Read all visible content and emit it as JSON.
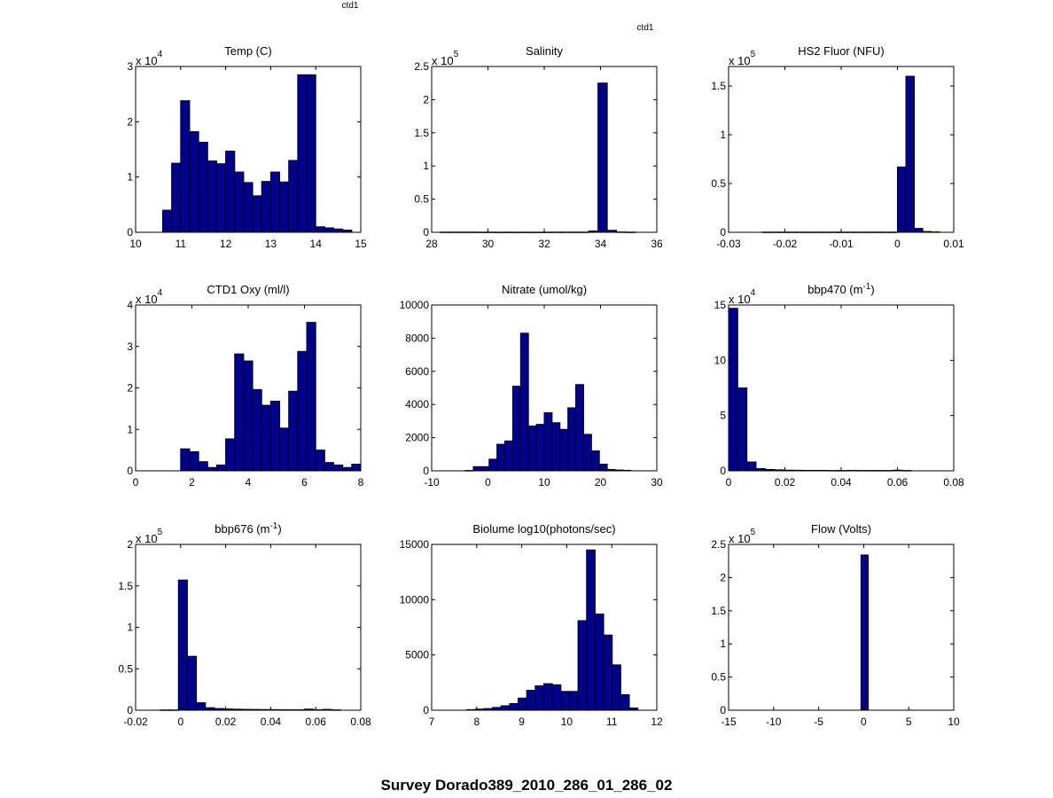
{
  "figure": {
    "suptitle": "Survey Dorado389_2010_286_01_286_02",
    "tags": [
      "ctd1",
      "ctd1"
    ],
    "bar_color": "#00008f"
  },
  "chart_data": [
    {
      "type": "bar",
      "title": "Temp (C)",
      "xlim": [
        10,
        15
      ],
      "ylim": [
        0,
        30000
      ],
      "xticks": [
        10,
        11,
        12,
        13,
        14,
        15
      ],
      "xtick_labels": [
        "10",
        "11",
        "12",
        "13",
        "14",
        "15"
      ],
      "yticks": [
        0,
        10000,
        20000,
        30000
      ],
      "ytick_labels": [
        "0",
        "1",
        "2",
        "3"
      ],
      "exponent": "4",
      "bins": {
        "start": 10.6,
        "width": 0.2
      },
      "values": [
        4000,
        12500,
        23800,
        18200,
        16300,
        12900,
        12400,
        14700,
        10900,
        9000,
        6600,
        9200,
        10900,
        9100,
        13000,
        28500,
        28500,
        1000,
        800,
        600,
        400
      ]
    },
    {
      "type": "bar",
      "title": "Salinity",
      "xlim": [
        28,
        36
      ],
      "ylim": [
        0,
        250000
      ],
      "xticks": [
        28,
        30,
        32,
        34,
        36
      ],
      "xtick_labels": [
        "28",
        "30",
        "32",
        "34",
        "36"
      ],
      "yticks": [
        0,
        50000,
        100000,
        150000,
        200000,
        250000
      ],
      "ytick_labels": [
        "0",
        "0.5",
        "1",
        "1.5",
        "2",
        "2.5"
      ],
      "exponent": "5",
      "bins": {
        "start": 28.3,
        "width": 0.33
      },
      "values": [
        300,
        300,
        300,
        300,
        200,
        300,
        200,
        200,
        200,
        200,
        200,
        200,
        300,
        300,
        300,
        300,
        2000,
        225000,
        3000,
        500,
        300
      ]
    },
    {
      "type": "bar",
      "title": "HS2 Fluor (NFU)",
      "xlim": [
        -0.03,
        0.01
      ],
      "ylim": [
        0,
        170000
      ],
      "xticks": [
        -0.03,
        -0.02,
        -0.01,
        0,
        0.01
      ],
      "xtick_labels": [
        "-0.03",
        "-0.02",
        "-0.01",
        "0",
        "0.01"
      ],
      "yticks": [
        0,
        50000,
        100000,
        150000
      ],
      "ytick_labels": [
        "0",
        "0.5",
        "1",
        "1.5"
      ],
      "exponent": "5",
      "bins": {
        "start": -0.024,
        "width": 0.0015
      },
      "values": [
        200,
        200,
        200,
        200,
        200,
        200,
        200,
        200,
        200,
        200,
        200,
        200,
        200,
        200,
        200,
        200,
        67000,
        160000,
        4000,
        800,
        400
      ]
    },
    {
      "type": "bar",
      "title": "CTD1 Oxy (ml/l)",
      "xlim": [
        0,
        8
      ],
      "ylim": [
        0,
        40000
      ],
      "xticks": [
        0,
        2,
        4,
        6,
        8
      ],
      "xtick_labels": [
        "0",
        "2",
        "4",
        "6",
        "8"
      ],
      "yticks": [
        0,
        10000,
        20000,
        30000,
        40000
      ],
      "ytick_labels": [
        "0",
        "1",
        "2",
        "3",
        "4"
      ],
      "exponent": "4",
      "bins": {
        "start": 1.6,
        "width": 0.32
      },
      "values": [
        5300,
        4600,
        2200,
        800,
        1400,
        7700,
        28200,
        26500,
        19600,
        15800,
        16800,
        10300,
        19200,
        28800,
        35800,
        5000,
        2000,
        1400,
        800,
        1600
      ]
    },
    {
      "type": "bar",
      "title": "Nitrate (umol/kg)",
      "xlim": [
        -10,
        30
      ],
      "ylim": [
        0,
        10000
      ],
      "xticks": [
        -10,
        0,
        10,
        20,
        30
      ],
      "xtick_labels": [
        "-10",
        "0",
        "10",
        "20",
        "30"
      ],
      "yticks": [
        0,
        2000,
        4000,
        6000,
        8000,
        10000
      ],
      "ytick_labels": [
        "0",
        "2000",
        "4000",
        "6000",
        "8000",
        "10000"
      ],
      "exponent": "",
      "bins": {
        "start": -4.0,
        "width": 1.4
      },
      "values": [
        20,
        250,
        250,
        700,
        1600,
        1800,
        5100,
        8300,
        2700,
        2800,
        3500,
        2900,
        2500,
        3800,
        5200,
        2200,
        1200,
        400,
        80,
        50,
        30
      ]
    },
    {
      "type": "bar",
      "title": "bbp470 (m⁻¹)",
      "title_main": "bbp470 (m",
      "title_sup": "-1",
      "title_end": ")",
      "xlim": [
        0,
        0.08
      ],
      "ylim": [
        0,
        150000
      ],
      "xticks": [
        0,
        0.02,
        0.04,
        0.06,
        0.08
      ],
      "xtick_labels": [
        "0",
        "0.02",
        "0.04",
        "0.06",
        "0.08"
      ],
      "yticks": [
        0,
        50000,
        100000,
        150000
      ],
      "ytick_labels": [
        "0",
        "5",
        "10",
        "15"
      ],
      "exponent": "4",
      "bins": {
        "start": 0.0,
        "width": 0.00325
      },
      "values": [
        147000,
        75000,
        8000,
        2000,
        1200,
        900,
        600,
        500,
        400,
        400,
        400,
        300,
        300,
        400,
        300,
        300,
        300,
        300,
        600,
        300
      ]
    },
    {
      "type": "bar",
      "title": "bbp676 (m⁻¹)",
      "title_main": "bbp676 (m",
      "title_sup": "-1",
      "title_end": ")",
      "xlim": [
        -0.02,
        0.08
      ],
      "ylim": [
        0,
        200000
      ],
      "xticks": [
        -0.02,
        0,
        0.02,
        0.04,
        0.06,
        0.08
      ],
      "xtick_labels": [
        "-0.02",
        "0",
        "0.02",
        "0.04",
        "0.06",
        "0.08"
      ],
      "yticks": [
        0,
        50000,
        100000,
        150000,
        200000
      ],
      "ytick_labels": [
        "0",
        "0.5",
        "1",
        "1.5",
        "2"
      ],
      "exponent": "5",
      "bins": {
        "start": -0.009,
        "width": 0.004
      },
      "values": [
        300,
        300,
        157000,
        65000,
        9000,
        3000,
        2000,
        1500,
        1200,
        1000,
        900,
        800,
        700,
        600,
        500,
        500,
        1300,
        500,
        1000,
        400
      ]
    },
    {
      "type": "bar",
      "title": "Biolume log10(photons/sec)",
      "xlim": [
        7,
        12
      ],
      "ylim": [
        0,
        15000
      ],
      "xticks": [
        7,
        8,
        9,
        10,
        11,
        12
      ],
      "xtick_labels": [
        "7",
        "8",
        "9",
        "10",
        "11",
        "12"
      ],
      "yticks": [
        0,
        5000,
        10000,
        15000
      ],
      "ytick_labels": [
        "0",
        "5000",
        "10000",
        "15000"
      ],
      "exponent": "",
      "bins": {
        "start": 7.78,
        "width": 0.19
      },
      "values": [
        50,
        100,
        150,
        250,
        400,
        600,
        1100,
        1800,
        2200,
        2400,
        2300,
        1700,
        1700,
        8100,
        14500,
        8700,
        6800,
        4100,
        1400,
        200
      ]
    },
    {
      "type": "bar",
      "title": "Flow (Volts)",
      "xlim": [
        -15,
        10
      ],
      "ylim": [
        0,
        250000
      ],
      "xticks": [
        -15,
        -10,
        -5,
        0,
        5,
        10
      ],
      "xtick_labels": [
        "-15",
        "-10",
        "-5",
        "0",
        "5",
        "10"
      ],
      "yticks": [
        0,
        50000,
        100000,
        150000,
        200000,
        250000
      ],
      "ytick_labels": [
        "0",
        "0.5",
        "1",
        "1.5",
        "2",
        "2.5"
      ],
      "exponent": "5",
      "bins": {
        "start": -0.3,
        "width": 0.8
      },
      "values": [
        234000
      ]
    }
  ]
}
